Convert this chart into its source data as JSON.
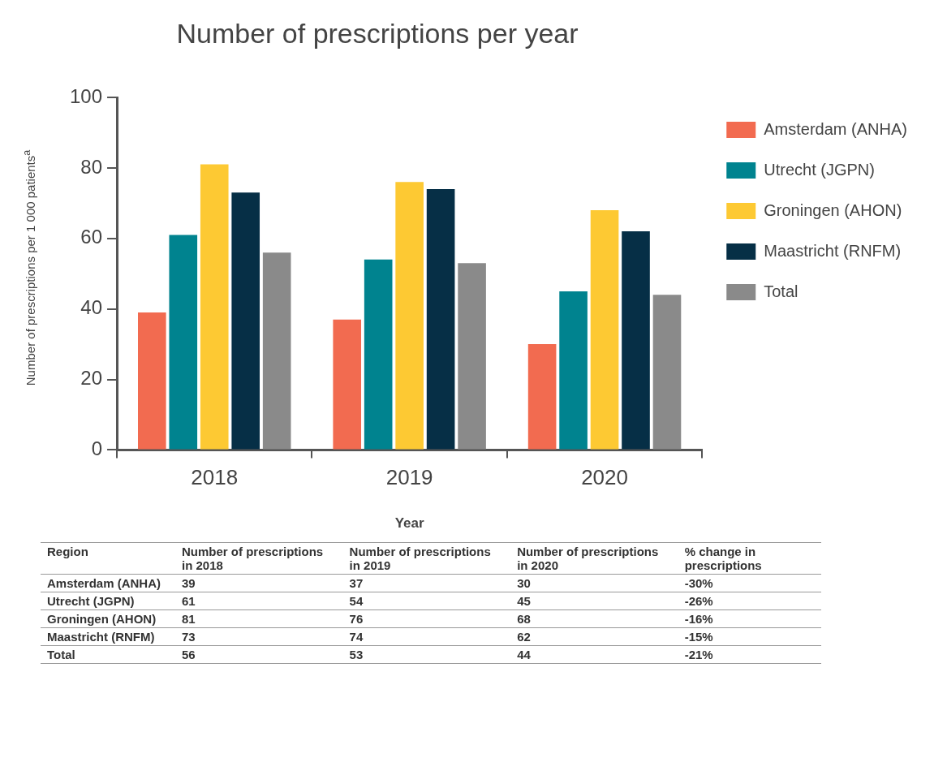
{
  "chart_data": {
    "type": "bar",
    "title": "Number of prescriptions per year",
    "xlabel": "Year",
    "ylabel": "Number of prescriptions per 1 000 patients$^{a}$",
    "categories": [
      "2018",
      "2019",
      "2020"
    ],
    "series": [
      {
        "name": "Amsterdam (ANHA)",
        "color": "#f26b50",
        "values": [
          39,
          37,
          30
        ]
      },
      {
        "name": "Utrecht (JGPN)",
        "color": "#00838f",
        "values": [
          61,
          54,
          45
        ]
      },
      {
        "name": "Groningen (AHON)",
        "color": "#fdc933",
        "values": [
          81,
          76,
          68
        ]
      },
      {
        "name": "Maastricht (RNFM)",
        "color": "#062f46",
        "values": [
          73,
          74,
          62
        ]
      },
      {
        "name": "Total",
        "color": "#8a8a8a",
        "values": [
          56,
          53,
          44
        ]
      }
    ],
    "ylim": [
      0,
      100
    ],
    "yticks": [
      0,
      20,
      40,
      60,
      80,
      100
    ],
    "grid": false,
    "legend": "right",
    "data_labels": true,
    "annotations": [
      "Region",
      "Number of prescriptions in 2018",
      "Number of prescriptions in 2019",
      "Number of prescriptions in 2020",
      "% change in prescriptions",
      "-30%",
      "-26%",
      "-16%",
      "-15%",
      "-21%"
    ]
  }
}
